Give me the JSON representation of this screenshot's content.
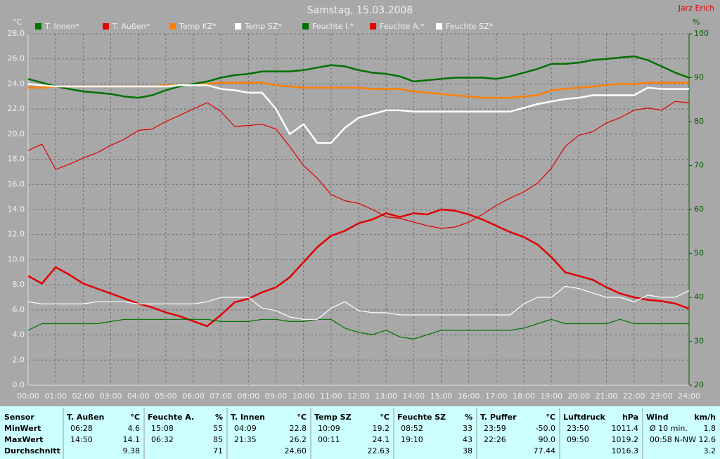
{
  "chart_data": {
    "type": "line",
    "title": "Samstag, 15.03.2008",
    "author": "Jarz Erich",
    "ylabel": "°C",
    "y2label": "%",
    "xlim": [
      0,
      24
    ],
    "xticks": [
      {
        "value": 0,
        "label": "00:00"
      },
      {
        "value": 1,
        "label": "01:00"
      },
      {
        "value": 2,
        "label": "02:00"
      },
      {
        "value": 3,
        "label": "03:00"
      },
      {
        "value": 4,
        "label": "04:00"
      },
      {
        "value": 5,
        "label": "05:00"
      },
      {
        "value": 6,
        "label": "06:00"
      },
      {
        "value": 7,
        "label": "07:00"
      },
      {
        "value": 8,
        "label": "08:00"
      },
      {
        "value": 9,
        "label": "09:00"
      },
      {
        "value": 10,
        "label": "10:00"
      },
      {
        "value": 11,
        "label": "11:00"
      },
      {
        "value": 12,
        "label": "12:00"
      },
      {
        "value": 13,
        "label": "13:00"
      },
      {
        "value": 14,
        "label": "14:00"
      },
      {
        "value": 15,
        "label": "15:00"
      },
      {
        "value": 16,
        "label": "16:00"
      },
      {
        "value": 17,
        "label": "17:00"
      },
      {
        "value": 18,
        "label": "18:00"
      },
      {
        "value": 19,
        "label": "19:00"
      },
      {
        "value": 20,
        "label": "20:00"
      },
      {
        "value": 21,
        "label": "21:00"
      },
      {
        "value": 22,
        "label": "22:00"
      },
      {
        "value": 23,
        "label": "23:00"
      },
      {
        "value": 24,
        "label": "24:00"
      }
    ],
    "ylim": [
      0,
      28
    ],
    "yticks": [
      {
        "value": 0,
        "label": "0.0"
      },
      {
        "value": 2,
        "label": "2.0"
      },
      {
        "value": 4,
        "label": "4.0"
      },
      {
        "value": 6,
        "label": "6.0"
      },
      {
        "value": 8,
        "label": "8.0"
      },
      {
        "value": 10,
        "label": "10.0"
      },
      {
        "value": 12,
        "label": "12.0"
      },
      {
        "value": 14,
        "label": "14.0"
      },
      {
        "value": 16,
        "label": "16.0"
      },
      {
        "value": 18,
        "label": "18.0"
      },
      {
        "value": 20,
        "label": "20.0"
      },
      {
        "value": 22,
        "label": "22.0"
      },
      {
        "value": 24,
        "label": "24.0"
      },
      {
        "value": 26,
        "label": "26.0"
      },
      {
        "value": 28,
        "label": "28.0"
      }
    ],
    "y2lim": [
      20,
      100
    ],
    "y2ticks": [
      20,
      30,
      40,
      50,
      60,
      70,
      80,
      90,
      100
    ],
    "grid": true,
    "x": [
      0,
      0.5,
      1,
      1.5,
      2,
      2.5,
      3,
      3.5,
      4,
      4.5,
      5,
      5.5,
      6,
      6.5,
      7,
      7.5,
      8,
      8.5,
      9,
      9.5,
      10,
      10.5,
      11,
      11.5,
      12,
      12.5,
      13,
      13.5,
      14,
      14.5,
      15,
      15.5,
      16,
      16.5,
      17,
      17.5,
      18,
      18.5,
      19,
      19.5,
      20,
      20.5,
      21,
      21.5,
      22,
      22.5,
      23,
      23.5,
      24
    ],
    "series": [
      {
        "name": "T. Innen*",
        "color": "#007000",
        "values": [
          24.4,
          24.1,
          23.8,
          23.6,
          23.4,
          23.3,
          23.2,
          23.0,
          22.9,
          23.1,
          23.5,
          23.8,
          24.0,
          24.2,
          24.5,
          24.7,
          24.8,
          25.0,
          25.0,
          25.0,
          25.1,
          25.3,
          25.5,
          25.4,
          25.1,
          24.9,
          24.8,
          24.6,
          24.2,
          24.3,
          24.4,
          24.5,
          24.5,
          24.5,
          24.4,
          24.6,
          24.9,
          25.2,
          25.6,
          25.6,
          25.7,
          25.9,
          26.0,
          26.1,
          26.2,
          25.9,
          25.4,
          24.9,
          24.5
        ]
      },
      {
        "name": "T. Außen*",
        "color": "#e00000",
        "values": [
          8.7,
          8.1,
          9.4,
          8.8,
          8.1,
          7.7,
          7.3,
          6.9,
          6.5,
          6.2,
          5.8,
          5.5,
          5.1,
          4.7,
          5.6,
          6.6,
          6.9,
          7.4,
          7.8,
          8.6,
          9.8,
          11.0,
          11.9,
          12.3,
          12.9,
          13.2,
          13.7,
          13.4,
          13.7,
          13.6,
          14.0,
          13.9,
          13.6,
          13.2,
          12.7,
          12.2,
          11.8,
          11.2,
          10.2,
          9.0,
          8.7,
          8.4,
          7.8,
          7.3,
          7.0,
          6.8,
          6.7,
          6.5,
          6.1
        ]
      },
      {
        "name": "Temp KZ*",
        "color": "#ff8000",
        "values": [
          23.7,
          23.7,
          23.8,
          23.8,
          23.8,
          23.8,
          23.8,
          23.8,
          23.8,
          23.8,
          23.9,
          23.9,
          23.9,
          24.0,
          24.1,
          24.1,
          24.1,
          24.1,
          23.9,
          23.8,
          23.7,
          23.7,
          23.7,
          23.7,
          23.7,
          23.6,
          23.6,
          23.6,
          23.4,
          23.3,
          23.2,
          23.1,
          23.0,
          22.9,
          22.9,
          22.9,
          23.0,
          23.1,
          23.5,
          23.6,
          23.7,
          23.8,
          23.9,
          24.0,
          24.0,
          24.1,
          24.1,
          24.1,
          24.1
        ]
      },
      {
        "name": "Temp SZ*",
        "color": "#ffffff",
        "values": [
          24.0,
          23.9,
          23.8,
          23.8,
          23.8,
          23.8,
          23.8,
          23.8,
          23.8,
          23.8,
          23.8,
          23.9,
          23.9,
          23.9,
          23.6,
          23.5,
          23.3,
          23.3,
          22.0,
          20.0,
          20.8,
          19.3,
          19.3,
          20.5,
          21.3,
          21.6,
          21.9,
          21.9,
          21.8,
          21.8,
          21.8,
          21.8,
          21.8,
          21.8,
          21.8,
          21.8,
          22.1,
          22.4,
          22.6,
          22.8,
          22.9,
          23.1,
          23.1,
          23.1,
          23.1,
          23.7,
          23.6,
          23.6,
          23.6
        ]
      },
      {
        "name": "Feuchte I.*",
        "color": "#007000",
        "axis": "y2",
        "values": [
          32.5,
          34.0,
          34.0,
          34.0,
          34.0,
          34.0,
          34.5,
          35.0,
          35.0,
          35.0,
          35.0,
          35.0,
          35.0,
          35.0,
          34.5,
          34.5,
          34.5,
          35.0,
          35.0,
          34.5,
          34.5,
          35.0,
          35.0,
          33.0,
          32.0,
          31.5,
          32.5,
          31.0,
          30.5,
          31.5,
          32.5,
          32.5,
          32.5,
          32.5,
          32.5,
          32.5,
          33.0,
          34.0,
          35.0,
          34.0,
          34.0,
          34.0,
          34.0,
          35.0,
          34.0,
          34.0,
          34.0,
          34.0,
          34.0
        ]
      },
      {
        "name": "Feuchte A.*",
        "color": "#e00000",
        "axis": "y2",
        "values": [
          73.4,
          74.9,
          69.1,
          70.3,
          71.7,
          72.9,
          74.6,
          76.0,
          78.0,
          78.3,
          80.0,
          81.4,
          82.9,
          84.3,
          82.3,
          78.9,
          79.1,
          79.4,
          78.3,
          74.3,
          70.0,
          67.1,
          63.4,
          62.0,
          61.4,
          60.0,
          58.3,
          58.0,
          57.1,
          56.3,
          55.7,
          56.0,
          57.1,
          58.9,
          60.9,
          62.6,
          64.0,
          66.0,
          69.4,
          74.3,
          76.9,
          77.7,
          79.7,
          80.9,
          82.6,
          83.1,
          82.6,
          84.6,
          84.3
        ]
      },
      {
        "name": "Feuchte SZ*",
        "color": "#ffffff",
        "axis": "y2",
        "values": [
          39.0,
          38.5,
          38.5,
          38.5,
          38.5,
          39.0,
          39.0,
          39.0,
          38.5,
          38.5,
          38.5,
          38.5,
          38.5,
          39.0,
          40.0,
          40.0,
          40.0,
          37.5,
          37.0,
          35.5,
          35.0,
          35.0,
          37.5,
          39.0,
          37.0,
          36.5,
          36.5,
          36.0,
          36.0,
          36.0,
          36.0,
          36.0,
          36.0,
          36.0,
          36.0,
          36.0,
          38.5,
          40.0,
          40.0,
          42.5,
          42.0,
          41.0,
          40.0,
          40.0,
          39.0,
          40.5,
          40.0,
          40.0,
          41.5
        ]
      }
    ]
  },
  "table": {
    "header": {
      "label": "Sensor",
      "columns": [
        {
          "name": "T. Außen",
          "unit": "°C"
        },
        {
          "name": "Feuchte A.",
          "unit": "%"
        },
        {
          "name": "T. Innen",
          "unit": "°C"
        },
        {
          "name": "Temp SZ",
          "unit": "°C"
        },
        {
          "name": "Feuchte SZ",
          "unit": "%"
        },
        {
          "name": "T. Puffer",
          "unit": "°C"
        },
        {
          "name": "Luftdruck",
          "unit": "hPa"
        },
        {
          "name": "Wind",
          "unit": "km/h"
        }
      ]
    },
    "rows": [
      {
        "label": "MinWert",
        "cells": [
          {
            "time": "06:28",
            "value": "4.6"
          },
          {
            "time": "15:08",
            "value": "55"
          },
          {
            "time": "04:09",
            "value": "22.8"
          },
          {
            "time": "10:09",
            "value": "19.2"
          },
          {
            "time": "08:52",
            "value": "33"
          },
          {
            "time": "23:59",
            "value": "-50.0"
          },
          {
            "time": "23:50",
            "value": "1011.4"
          },
          {
            "time": "Ø 10 min.",
            "value": "1.8"
          }
        ]
      },
      {
        "label": "MaxWert",
        "cells": [
          {
            "time": "14:50",
            "value": "14.1"
          },
          {
            "time": "06:32",
            "value": "85"
          },
          {
            "time": "21:35",
            "value": "26.2"
          },
          {
            "time": "00:11",
            "value": "24.1"
          },
          {
            "time": "19:10",
            "value": "43"
          },
          {
            "time": "22:26",
            "value": "90.0"
          },
          {
            "time": "09:50",
            "value": "1019.2"
          },
          {
            "time": "00:58",
            "value": "N-NW 12.6"
          }
        ]
      },
      {
        "label": "Durchschnitt",
        "cells": [
          {
            "value": "9.38"
          },
          {
            "value": "71"
          },
          {
            "value": "24.60"
          },
          {
            "value": "22.63"
          },
          {
            "value": "38"
          },
          {
            "value": "77.44"
          },
          {
            "value": "1016.3"
          },
          {
            "value": "3.2"
          }
        ]
      }
    ]
  }
}
